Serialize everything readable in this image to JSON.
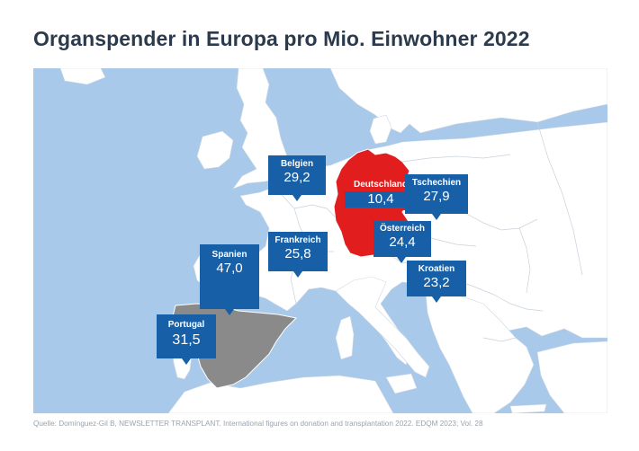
{
  "title": "Organspender in Europa pro Mio. Einwohner 2022",
  "source": "Quelle: Domínguez-Gil B, NEWSLETTER TRANSPLANT. International figures on donation and transplantation 2022. EDQM 2023; Vol. 28",
  "colors": {
    "sea": "#a9c9ea",
    "land": "#ffffff",
    "germany": "#e21d1d",
    "spain": "#8a8a8a",
    "callout": "#1760a8",
    "title": "#2b3b4d"
  },
  "countries": [
    {
      "id": "belgien",
      "name": "Belgien",
      "value": "29,2"
    },
    {
      "id": "deutschland",
      "name": "Deutschland",
      "value": "10,4"
    },
    {
      "id": "tschechien",
      "name": "Tschechien",
      "value": "27,9"
    },
    {
      "id": "frankreich",
      "name": "Frankreich",
      "value": "25,8"
    },
    {
      "id": "oesterreich",
      "name": "Österreich",
      "value": "24,4"
    },
    {
      "id": "spanien",
      "name": "Spanien",
      "value": "47,0"
    },
    {
      "id": "kroatien",
      "name": "Kroatien",
      "value": "23,2"
    },
    {
      "id": "portugal",
      "name": "Portugal",
      "value": "31,5"
    }
  ]
}
